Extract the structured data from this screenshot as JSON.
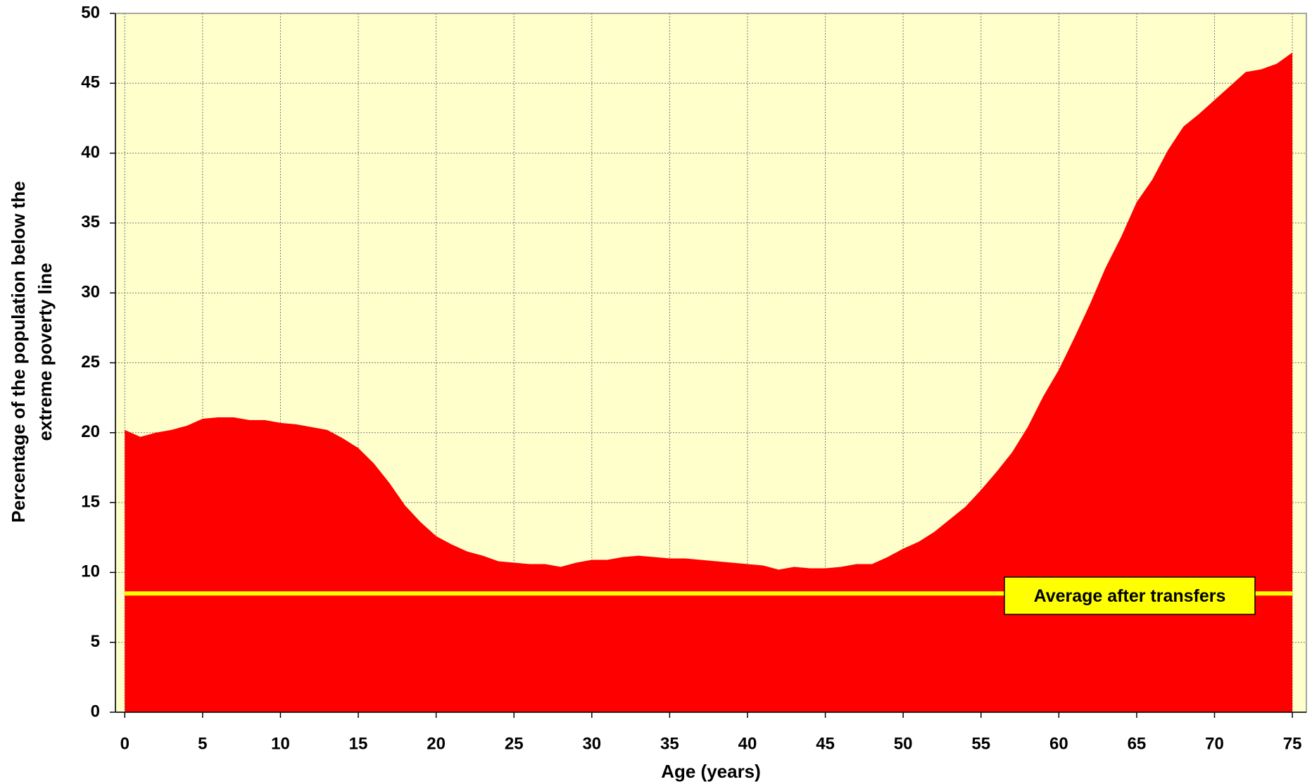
{
  "chart_data": {
    "type": "area",
    "xlabel": "Age (years)",
    "ylabel": [
      "Percentage of the population below the",
      "extreme poverty line"
    ],
    "x": [
      0,
      1,
      2,
      3,
      4,
      5,
      6,
      7,
      8,
      9,
      10,
      11,
      12,
      13,
      14,
      15,
      16,
      17,
      18,
      19,
      20,
      21,
      22,
      23,
      24,
      25,
      26,
      27,
      28,
      29,
      30,
      31,
      32,
      33,
      34,
      35,
      36,
      37,
      38,
      39,
      40,
      41,
      42,
      43,
      44,
      45,
      46,
      47,
      48,
      49,
      50,
      51,
      52,
      53,
      54,
      55,
      56,
      57,
      58,
      59,
      60,
      61,
      62,
      63,
      64,
      65,
      66,
      67,
      68,
      69,
      70,
      71,
      72,
      73,
      74,
      75
    ],
    "series": [
      {
        "color": "#ff0000",
        "values": [
          20.2,
          19.7,
          20.0,
          20.2,
          20.5,
          21.0,
          21.1,
          21.1,
          20.9,
          20.9,
          20.7,
          20.6,
          20.4,
          20.2,
          19.6,
          18.9,
          17.8,
          16.4,
          14.8,
          13.6,
          12.6,
          12.0,
          11.5,
          11.2,
          10.8,
          10.7,
          10.6,
          10.6,
          10.4,
          10.7,
          10.9,
          10.9,
          11.1,
          11.2,
          11.1,
          11.0,
          11.0,
          10.9,
          10.8,
          10.7,
          10.6,
          10.5,
          10.2,
          10.4,
          10.3,
          10.3,
          10.4,
          10.6,
          10.6,
          11.1,
          11.7,
          12.2,
          12.9,
          13.8,
          14.7,
          15.9,
          17.2,
          18.6,
          20.4,
          22.6,
          24.5,
          26.8,
          29.2,
          31.8,
          34.0,
          36.5,
          38.1,
          40.2,
          41.9,
          42.8,
          43.8,
          44.8,
          45.8,
          46.0,
          46.4,
          47.2
        ]
      }
    ],
    "reference_line": {
      "value": 8.5,
      "label": "Average after transfers",
      "color": "#ffff00"
    },
    "xlim": [
      -0.6,
      75.9
    ],
    "ylim": [
      0,
      50
    ],
    "xticks": [
      0,
      5,
      10,
      15,
      20,
      25,
      30,
      35,
      40,
      45,
      50,
      55,
      60,
      65,
      70,
      75
    ],
    "yticks": [
      0,
      5,
      10,
      15,
      20,
      25,
      30,
      35,
      40,
      45,
      50
    ],
    "grid": true,
    "background": "#ffffcc"
  }
}
